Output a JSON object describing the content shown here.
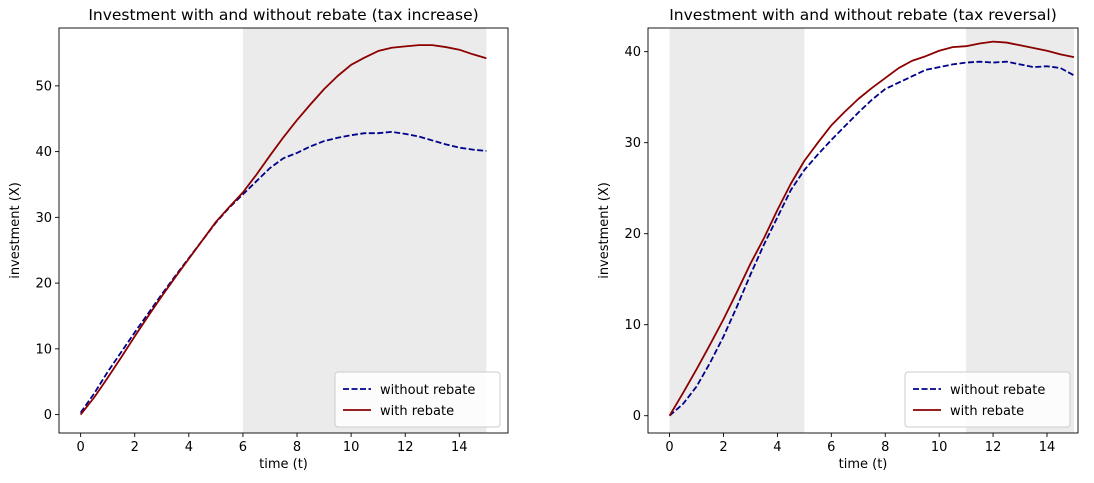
{
  "chart_data": [
    {
      "type": "line",
      "title": "Investment with and without rebate (tax increase)",
      "xlabel": "time (t)",
      "ylabel": "investment (X)",
      "xlim": [
        -0.8,
        15.8
      ],
      "ylim": [
        -2.8,
        58.8
      ],
      "xticks": [
        0,
        2,
        4,
        6,
        8,
        10,
        12,
        14
      ],
      "yticks": [
        0,
        10,
        20,
        30,
        40,
        50
      ],
      "shaded_intervals": [
        [
          6,
          15
        ]
      ],
      "legend_position": "lower right",
      "grid": false,
      "series": [
        {
          "name": "without rebate",
          "style": "dashed",
          "color": "#00008b",
          "x": [
            0,
            0.5,
            1,
            1.5,
            2,
            2.5,
            3,
            3.5,
            4,
            4.5,
            5,
            5.5,
            6,
            6.5,
            7,
            7.5,
            8,
            8.5,
            9,
            9.5,
            10,
            10.5,
            11,
            11.5,
            12,
            12.5,
            13,
            13.5,
            14,
            14.5,
            15
          ],
          "y": [
            0.3,
            3.2,
            6.5,
            9.5,
            12.5,
            15.4,
            18.3,
            21.1,
            23.8,
            26.5,
            29.2,
            31.5,
            33.5,
            35.5,
            37.5,
            39.0,
            39.8,
            40.8,
            41.6,
            42.1,
            42.5,
            42.8,
            42.8,
            43.0,
            42.7,
            42.3,
            41.7,
            41.1,
            40.6,
            40.3,
            40.1
          ]
        },
        {
          "name": "with rebate",
          "style": "solid",
          "color": "#8b0000",
          "x": [
            0,
            0.5,
            1,
            1.5,
            2,
            2.5,
            3,
            3.5,
            4,
            4.5,
            5,
            5.5,
            6,
            6.5,
            7,
            7.5,
            8,
            8.5,
            9,
            9.5,
            10,
            10.5,
            11,
            11.5,
            12,
            12.5,
            13,
            13.5,
            14,
            14.5,
            15
          ],
          "y": [
            0,
            2.6,
            5.6,
            8.7,
            11.9,
            15.0,
            18.0,
            20.9,
            23.7,
            26.5,
            29.3,
            31.6,
            33.8,
            36.5,
            39.4,
            42.2,
            44.8,
            47.2,
            49.5,
            51.5,
            53.2,
            54.3,
            55.3,
            55.8,
            56.0,
            56.2,
            56.2,
            55.9,
            55.5,
            54.8,
            54.2
          ]
        }
      ]
    },
    {
      "type": "line",
      "title": "Investment with and without rebate (tax reversal)",
      "xlabel": "time (t)",
      "ylabel": "investment (X)",
      "xlim": [
        -0.8,
        15.15
      ],
      "ylim": [
        -1.9,
        42.6
      ],
      "xticks": [
        0,
        2,
        4,
        6,
        8,
        10,
        12,
        14
      ],
      "yticks": [
        0,
        10,
        20,
        30,
        40
      ],
      "shaded_intervals": [
        [
          0,
          5
        ],
        [
          11,
          15
        ]
      ],
      "legend_position": "lower right",
      "grid": false,
      "series": [
        {
          "name": "without rebate",
          "style": "dashed",
          "color": "#00008b",
          "x": [
            0,
            0.5,
            1,
            1.5,
            2,
            2.5,
            3,
            3.5,
            4,
            4.5,
            5,
            5.5,
            6,
            6.5,
            7,
            7.5,
            8,
            8.5,
            9,
            9.5,
            10,
            10.5,
            11,
            11.5,
            12,
            12.5,
            13,
            13.5,
            14,
            14.5,
            15
          ],
          "y": [
            0,
            1.3,
            3.2,
            5.8,
            8.7,
            12.0,
            15.5,
            18.8,
            21.8,
            24.8,
            27.0,
            28.7,
            30.3,
            31.8,
            33.3,
            34.7,
            35.9,
            36.6,
            37.3,
            38.0,
            38.3,
            38.6,
            38.8,
            38.9,
            38.8,
            38.9,
            38.6,
            38.3,
            38.4,
            38.2,
            37.4
          ]
        },
        {
          "name": "with rebate",
          "style": "solid",
          "color": "#8b0000",
          "x": [
            0,
            0.5,
            1,
            1.5,
            2,
            2.5,
            3,
            3.5,
            4,
            4.5,
            5,
            5.5,
            6,
            6.5,
            7,
            7.5,
            8,
            8.5,
            9,
            9.5,
            10,
            10.5,
            11,
            11.5,
            12,
            12.5,
            13,
            13.5,
            14,
            14.5,
            15
          ],
          "y": [
            0,
            2.5,
            5.1,
            7.8,
            10.6,
            13.6,
            16.7,
            19.5,
            22.6,
            25.5,
            28.0,
            30.0,
            31.9,
            33.4,
            34.8,
            36.0,
            37.1,
            38.2,
            39.0,
            39.5,
            40.1,
            40.5,
            40.6,
            40.9,
            41.1,
            41.0,
            40.7,
            40.4,
            40.1,
            39.7,
            39.4
          ]
        }
      ]
    }
  ]
}
